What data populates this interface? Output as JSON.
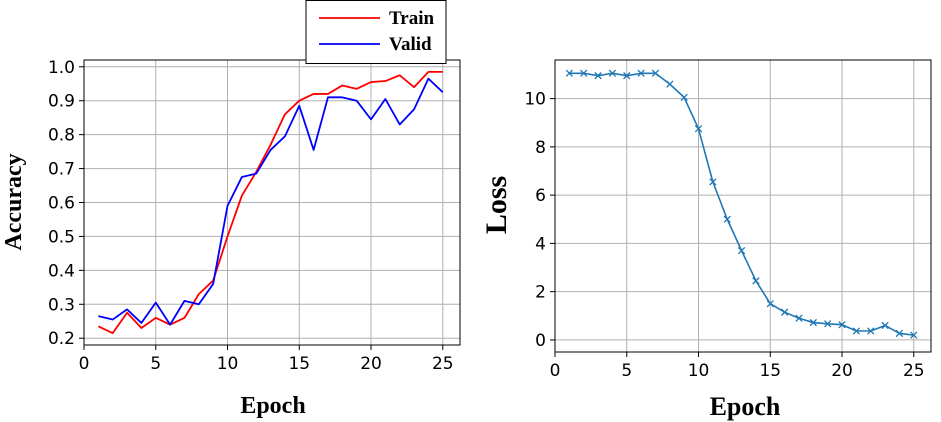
{
  "colors": {
    "train": "#ff0000",
    "valid": "#0000ff",
    "loss": "#1f77b4",
    "grid": "#b0b0b0",
    "axis": "#000000"
  },
  "chart_data": [
    {
      "type": "line",
      "title": "",
      "xlabel": "Epoch",
      "ylabel": "Accuracy",
      "xlim": [
        0,
        26.2
      ],
      "ylim": [
        0.18,
        1.02
      ],
      "xticks": [
        0,
        5,
        10,
        15,
        20,
        25
      ],
      "xtick_labels": [
        "0",
        "5",
        "10",
        "15",
        "20",
        "25"
      ],
      "yticks": [
        0.2,
        0.3,
        0.4,
        0.5,
        0.6,
        0.7,
        0.8,
        0.9,
        1.0
      ],
      "ytick_labels": [
        "0.2",
        "0.3",
        "0.4",
        "0.5",
        "0.6",
        "0.7",
        "0.8",
        "0.9",
        "1.0"
      ],
      "grid": true,
      "legend": "top-center, above plot",
      "x": [
        1,
        2,
        3,
        4,
        5,
        6,
        7,
        8,
        9,
        10,
        11,
        12,
        13,
        14,
        15,
        16,
        17,
        18,
        19,
        20,
        21,
        22,
        23,
        24,
        25
      ],
      "series": [
        {
          "name": "Train",
          "color": "#ff0000",
          "values": [
            0.235,
            0.215,
            0.275,
            0.23,
            0.26,
            0.24,
            0.26,
            0.33,
            0.37,
            0.5,
            0.62,
            0.69,
            0.77,
            0.86,
            0.9,
            0.92,
            0.92,
            0.945,
            0.935,
            0.955,
            0.958,
            0.975,
            0.94,
            0.985,
            0.985
          ]
        },
        {
          "name": "Valid",
          "color": "#0000ff",
          "values": [
            0.265,
            0.255,
            0.285,
            0.245,
            0.305,
            0.24,
            0.31,
            0.3,
            0.36,
            0.59,
            0.675,
            0.685,
            0.755,
            0.795,
            0.885,
            0.755,
            0.91,
            0.91,
            0.9,
            0.845,
            0.905,
            0.83,
            0.875,
            0.965,
            0.925
          ]
        }
      ]
    },
    {
      "type": "line",
      "title": "",
      "xlabel": "Epoch",
      "ylabel": "Loss",
      "xlim": [
        0,
        26.2
      ],
      "ylim": [
        -0.5,
        11.6
      ],
      "xticks": [
        0,
        5,
        10,
        15,
        20,
        25
      ],
      "xtick_labels": [
        "0",
        "5",
        "10",
        "15",
        "20",
        "25"
      ],
      "yticks": [
        0,
        2,
        4,
        6,
        8,
        10
      ],
      "ytick_labels": [
        "0",
        "2",
        "4",
        "6",
        "8",
        "10"
      ],
      "grid": true,
      "marker": "x",
      "x": [
        1,
        2,
        3,
        4,
        5,
        6,
        7,
        8,
        9,
        10,
        11,
        12,
        13,
        14,
        15,
        16,
        17,
        18,
        19,
        20,
        21,
        22,
        23,
        24,
        25
      ],
      "series": [
        {
          "color": "#1f77b4",
          "values": [
            11.05,
            11.05,
            10.95,
            11.05,
            10.95,
            11.05,
            11.05,
            10.6,
            10.05,
            8.75,
            6.55,
            5.0,
            3.7,
            2.45,
            1.5,
            1.15,
            0.9,
            0.72,
            0.67,
            0.63,
            0.37,
            0.37,
            0.6,
            0.27,
            0.2
          ]
        }
      ]
    }
  ]
}
